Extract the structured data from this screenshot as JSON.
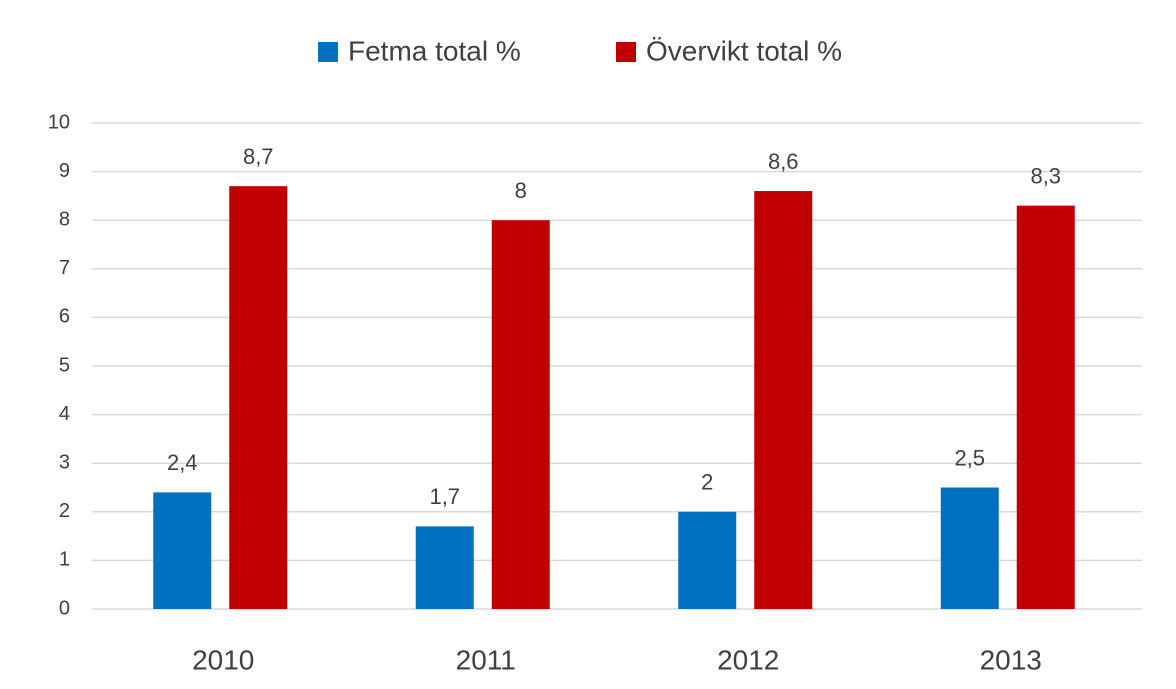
{
  "chart_data": {
    "type": "bar",
    "categories": [
      "2010",
      "2011",
      "2012",
      "2013"
    ],
    "series": [
      {
        "name": "Fetma total %",
        "color": "#0070c0",
        "values": [
          2.4,
          1.7,
          2,
          2.5
        ],
        "value_labels": [
          "2,4",
          "1,7",
          "2",
          "2,5"
        ]
      },
      {
        "name": "Övervikt total %",
        "color": "#c00000",
        "values": [
          8.7,
          8,
          8.6,
          8.3
        ],
        "value_labels": [
          "8,7",
          "8",
          "8,6",
          "8,3"
        ]
      }
    ],
    "ylim": [
      0,
      10
    ],
    "yticks": [
      0,
      1,
      2,
      3,
      4,
      5,
      6,
      7,
      8,
      9,
      10
    ],
    "grid": true,
    "legend": "top"
  }
}
